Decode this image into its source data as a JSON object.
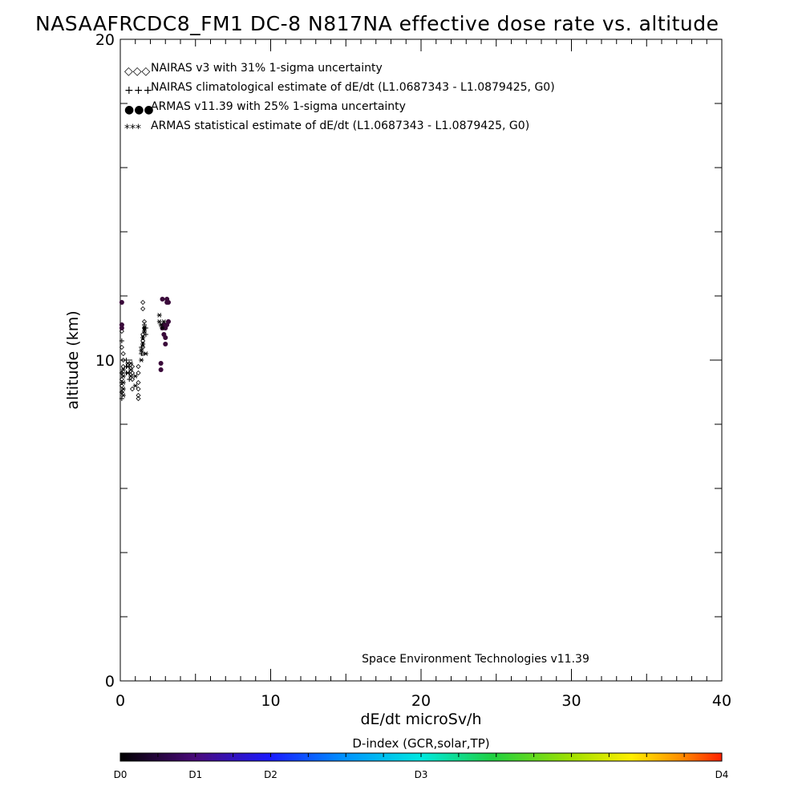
{
  "chart_data": {
    "type": "scatter",
    "title": "NASAAFRCDC8_FM1 DC-8   N817NA effective dose rate vs. altitude",
    "xlabel": "dE/dt microSv/h",
    "ylabel": "altitude (km)",
    "xlim": [
      0,
      40
    ],
    "ylim": [
      0,
      20
    ],
    "x_ticks": [
      "0",
      "10",
      "20",
      "30",
      "40"
    ],
    "y_ticks": [
      "0",
      "10",
      "20"
    ],
    "legend_placement": "top-left",
    "legend": [
      {
        "symbol": "◇◇◇",
        "label": "NAIRAS v3 with 31% 1-sigma uncertainty"
      },
      {
        "symbol": "+++",
        "label": "NAIRAS climatological estimate of dE/dt (L1.0687343 - L1.0879425, G0)"
      },
      {
        "symbol": "●●●",
        "label": "ARMAS v11.39 with 25% 1-sigma uncertainty"
      },
      {
        "symbol": "***",
        "label": "ARMAS statistical estimate of dE/dt (L1.0687343 - L1.0879425, G0)"
      }
    ],
    "annotation": "Space Environment Technologies v11.39",
    "colors": {
      "legend_armas": "#1f3fd0",
      "armas_points": "#3a0a3a",
      "markers": "#000000"
    },
    "series": [
      {
        "name": "NAIRAS v3 with 31% 1-sigma uncertainty",
        "marker": "diamond",
        "x": [
          0.1,
          0.1,
          0.1,
          0.1,
          0.1,
          0.1,
          0.2,
          0.2,
          0.2,
          0.8,
          0.8,
          0.8,
          0.8,
          1.2,
          1.2,
          1.2,
          1.2,
          1.2,
          1.2,
          1.5,
          1.5,
          1.5,
          1.5,
          1.6,
          1.6,
          1.5,
          1.5
        ],
        "y": [
          9.0,
          9.2,
          9.4,
          9.6,
          10.4,
          10.9,
          9.8,
          10.0,
          10.2,
          9.4,
          9.6,
          9.8,
          9.1,
          8.8,
          8.9,
          9.1,
          9.3,
          9.6,
          9.8,
          10.2,
          10.4,
          10.6,
          10.8,
          11.0,
          11.2,
          11.6,
          11.8
        ]
      },
      {
        "name": "NAIRAS climatological estimate of dE/dt (L1.0687343 - L1.0879425, G0)",
        "marker": "plus",
        "x": [
          0.1,
          0.1,
          0.1,
          0.1,
          0.1,
          0.1,
          0.4,
          0.4,
          0.4,
          0.6,
          0.6,
          0.6,
          1.4,
          1.4,
          1.5,
          1.5,
          1.6,
          1.6,
          1.6,
          1.7,
          1.7
        ],
        "y": [
          8.8,
          9.0,
          9.3,
          9.6,
          10.6,
          11.1,
          9.6,
          9.8,
          10.0,
          9.4,
          9.6,
          9.8,
          10.2,
          10.4,
          10.5,
          10.7,
          10.9,
          11.0,
          11.1,
          10.8,
          11.0
        ]
      },
      {
        "name": "ARMAS v11.39 with 25% 1-sigma uncertainty",
        "marker": "circle",
        "x": [
          0.1,
          0.1,
          0.1,
          2.7,
          2.7,
          2.8,
          2.8,
          2.9,
          2.9,
          3.0,
          3.0,
          3.0,
          3.1,
          3.1,
          3.1,
          3.2,
          3.2
        ],
        "y": [
          11.0,
          11.1,
          11.8,
          9.7,
          9.9,
          11.0,
          11.9,
          10.8,
          11.1,
          10.5,
          10.7,
          11.0,
          11.1,
          11.8,
          11.9,
          11.2,
          11.8
        ]
      },
      {
        "name": "ARMAS statistical estimate of dE/dt (L1.0687343 - L1.0879425, G0)",
        "marker": "asterisk",
        "x": [
          0.2,
          0.2,
          0.2,
          0.2,
          0.2,
          0.5,
          0.5,
          0.5,
          0.7,
          0.7,
          0.7,
          1.0,
          1.0,
          1.4,
          1.4,
          1.5,
          1.5,
          1.6,
          1.6,
          1.7,
          2.6,
          2.6,
          2.7,
          2.8,
          2.9
        ],
        "y": [
          8.9,
          9.1,
          9.3,
          9.5,
          9.7,
          9.6,
          9.8,
          9.9,
          9.5,
          9.7,
          9.9,
          9.2,
          9.5,
          10.0,
          10.3,
          10.5,
          10.7,
          10.9,
          11.0,
          10.2,
          11.2,
          11.4,
          11.1,
          11.0,
          11.2
        ]
      }
    ],
    "colorbar": {
      "title": "D-index (GCR,solar,TP)",
      "labels": [
        {
          "text": "D0",
          "pos": 0.0
        },
        {
          "text": "D1",
          "pos": 0.125
        },
        {
          "text": "D2",
          "pos": 0.25
        },
        {
          "text": "D3",
          "pos": 0.5
        },
        {
          "text": "D4",
          "pos": 1.0
        }
      ],
      "minor_tick_count": 16
    }
  }
}
